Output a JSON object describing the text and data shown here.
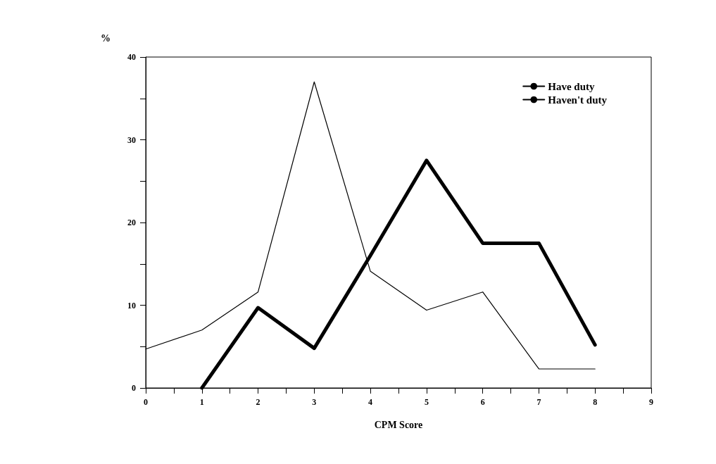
{
  "chart_data": {
    "type": "line",
    "xlabel": "CPM Score",
    "ylabel": "%",
    "xlim": [
      0,
      9
    ],
    "ylim": [
      0,
      40
    ],
    "xticks": [
      0,
      {
        "value": 0.5,
        "label": null
      },
      1,
      {
        "value": 1.5,
        "label": null
      },
      2,
      {
        "value": 2.5,
        "label": null
      },
      3,
      {
        "value": 3.5,
        "label": null
      },
      4,
      {
        "value": 4.5,
        "label": null
      },
      5,
      {
        "value": 5.5,
        "label": null
      },
      6,
      {
        "value": 6.5,
        "label": null
      },
      7,
      {
        "value": 7.5,
        "label": null
      },
      8,
      {
        "value": 8.5,
        "label": null
      },
      9
    ],
    "yticks": [
      0,
      {
        "value": 5,
        "label": null
      },
      10,
      {
        "value": 15,
        "label": null
      },
      20,
      {
        "value": 25,
        "label": null
      },
      30,
      {
        "value": 35,
        "label": null
      },
      40
    ],
    "grid": false,
    "legend": "top right",
    "marker": "none",
    "line_style": "solid",
    "series": [
      {
        "name": "Have duty",
        "color": "#000000",
        "x": [
          1,
          2,
          3,
          4,
          5,
          6,
          7,
          8
        ],
        "values": [
          0,
          9.7,
          4.8,
          16,
          27.5,
          17.5,
          17.5,
          5.2
        ]
      },
      {
        "name": "Haven't duty",
        "color": "#000000",
        "x": [
          0,
          1,
          2,
          3,
          4,
          5,
          6,
          7,
          8
        ],
        "values": [
          4.7,
          7.0,
          11.6,
          37,
          14.1,
          9.4,
          11.6,
          2.3,
          2.3
        ]
      }
    ]
  }
}
